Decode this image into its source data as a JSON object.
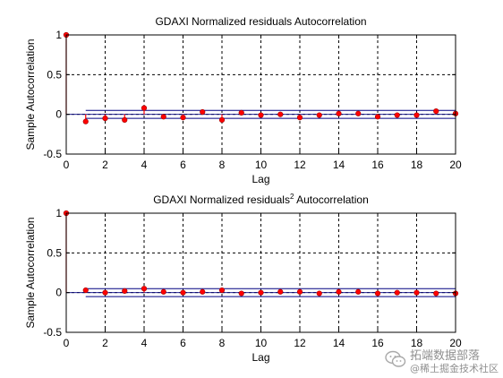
{
  "chart_data": [
    {
      "type": "stem",
      "title": "GDAXI Normalized residuals Autocorrelation",
      "title_superscript": "",
      "title_tail": "",
      "xlabel": "Lag",
      "ylabel": "Sample Autocorrelation",
      "xlim": [
        0,
        20
      ],
      "ylim": [
        -0.5,
        1
      ],
      "xticks": [
        "0",
        "2",
        "4",
        "6",
        "8",
        "10",
        "12",
        "14",
        "16",
        "18",
        "20"
      ],
      "yticks": [
        "-0.5",
        "0",
        "0.5",
        "1"
      ],
      "grid": true,
      "confidence_bounds": [
        0.05,
        -0.05
      ],
      "x": [
        0,
        1,
        2,
        3,
        4,
        5,
        6,
        7,
        8,
        9,
        10,
        11,
        12,
        13,
        14,
        15,
        16,
        17,
        18,
        19,
        20
      ],
      "values": [
        1.0,
        -0.09,
        -0.05,
        -0.07,
        0.08,
        -0.03,
        -0.04,
        0.03,
        -0.07,
        0.02,
        -0.01,
        0.0,
        -0.04,
        -0.01,
        0.01,
        0.01,
        -0.03,
        -0.01,
        -0.01,
        0.04,
        0.01
      ]
    },
    {
      "type": "stem",
      "title": "GDAXI Normalized residuals",
      "title_superscript": "2",
      "title_tail": " Autocorrelation",
      "xlabel": "Lag",
      "ylabel": "Sample Autocorrelation",
      "xlim": [
        0,
        20
      ],
      "ylim": [
        -0.5,
        1
      ],
      "xticks": [
        "0",
        "2",
        "4",
        "6",
        "8",
        "10",
        "12",
        "14",
        "16",
        "18",
        "20"
      ],
      "yticks": [
        "-0.5",
        "0",
        "0.5",
        "1"
      ],
      "grid": true,
      "confidence_bounds": [
        0.05,
        -0.05
      ],
      "x": [
        0,
        1,
        2,
        3,
        4,
        5,
        6,
        7,
        8,
        9,
        10,
        11,
        12,
        13,
        14,
        15,
        16,
        17,
        18,
        19,
        20
      ],
      "values": [
        1.0,
        0.03,
        0.0,
        0.02,
        0.05,
        0.01,
        0.0,
        0.01,
        0.03,
        -0.01,
        0.0,
        0.01,
        0.01,
        -0.01,
        0.01,
        0.01,
        -0.01,
        0.0,
        0.0,
        -0.01,
        -0.01
      ]
    }
  ],
  "colors": {
    "stem_line": "#ff0000",
    "marker_fill": "#ff0000",
    "marker_edge": "#a00000",
    "bound_line": "#000080",
    "zero_line": "#000080",
    "axes": "#000000",
    "grid": "#000000"
  },
  "watermark": {
    "icon": "wechat-icon",
    "line1": "拓端数据部落",
    "line2": "@稀土掘金技术社区"
  }
}
